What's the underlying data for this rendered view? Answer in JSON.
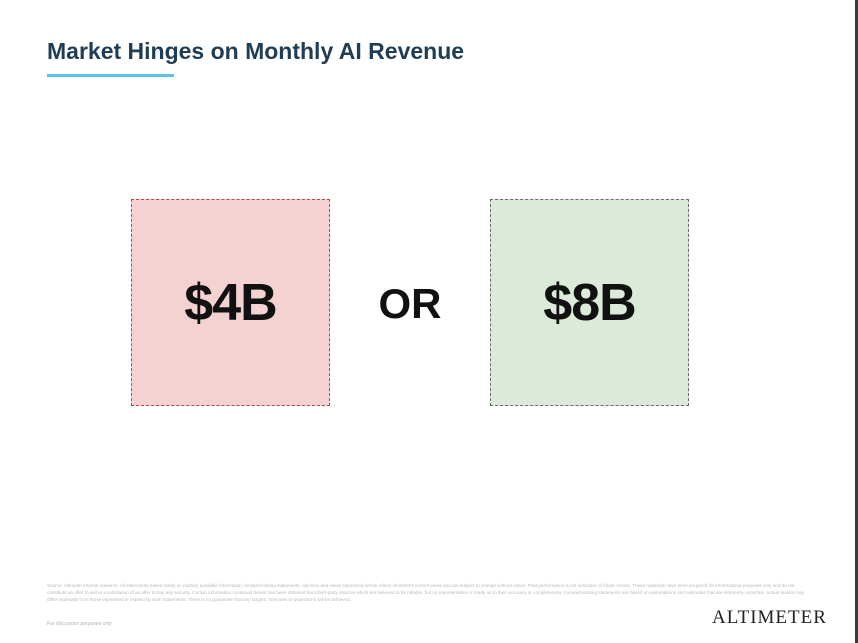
{
  "slide": {
    "title": "Market Hinges on Monthly AI Revenue",
    "left_value": "$4B",
    "connector": "OR",
    "right_value": "$8B"
  },
  "footer": {
    "disclaimer": "Source: Altimeter internal research. All statements based solely on publicly available information; forward-looking statements, opinions and views expressed herein reflect Altimeter's current views and are subject to change without notice. Past performance is not indicative of future results. These materials have been prepared for informational purposes only and do not constitute an offer to sell or a solicitation of an offer to buy any security. Certain information contained herein has been obtained from third-party sources which are believed to be reliable, but no representation is made as to their accuracy or completeness. Forward-looking statements are based on assumptions and estimates that are inherently uncertain. Actual results may differ materially from those expressed or implied by such statements. There is no guarantee that any targets, forecasts or projections will be achieved.",
    "distribution_note": "For discussion purposes only",
    "logo_text": "ALTIMETER"
  },
  "colors": {
    "title": "#1f3d55",
    "accent_underline": "#5bc4e6",
    "left_box_fill": "#f4d2d2",
    "left_box_border": "#b54a4a",
    "right_box_fill": "#dcebd9",
    "right_box_border": "#6b6b6b"
  }
}
